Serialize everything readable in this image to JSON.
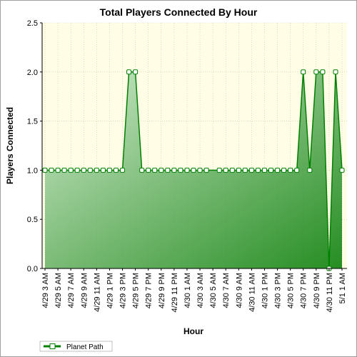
{
  "chart_data": {
    "type": "area",
    "title": "Total Players Connected By Hour",
    "xlabel": "Hour",
    "ylabel": "Players Connected",
    "ylim": [
      0,
      2.5
    ],
    "yticks": [
      "0.0",
      "0.5",
      "1.0",
      "1.5",
      "2.0",
      "2.5"
    ],
    "grid": true,
    "legend": "bottom-left",
    "x_tick_labels": [
      "4/29 3 AM",
      "4/29 5 AM",
      "4/29 7 AM",
      "4/29 9 AM",
      "4/29 11 AM",
      "4/29 1 PM",
      "4/29 3 PM",
      "4/29 5 PM",
      "4/29 7 PM",
      "4/29 9 PM",
      "4/29 11 PM",
      "4/30 1 AM",
      "4/30 3 AM",
      "4/30 5 AM",
      "4/30 7 AM",
      "4/30 9 AM",
      "4/30 11 AM",
      "4/30 1 PM",
      "4/30 3 PM",
      "4/30 5 PM",
      "4/30 7 PM",
      "4/30 9 PM",
      "4/30 11 PM",
      "5/1 1 AM"
    ],
    "series": [
      {
        "name": "Planet Path",
        "points": [
          {
            "x": "4/29 3 AM",
            "y": 1
          },
          {
            "x": "4/29 4 AM",
            "y": 1
          },
          {
            "x": "4/29 5 AM",
            "y": 1
          },
          {
            "x": "4/29 6 AM",
            "y": 1
          },
          {
            "x": "4/29 7 AM",
            "y": 1
          },
          {
            "x": "4/29 8 AM",
            "y": 1
          },
          {
            "x": "4/29 9 AM",
            "y": 1
          },
          {
            "x": "4/29 10 AM",
            "y": 1
          },
          {
            "x": "4/29 11 AM",
            "y": 1
          },
          {
            "x": "4/29 12 PM",
            "y": 1
          },
          {
            "x": "4/29 1 PM",
            "y": 1
          },
          {
            "x": "4/29 2 PM",
            "y": 1
          },
          {
            "x": "4/29 3 PM",
            "y": 1
          },
          {
            "x": "4/29 4 PM",
            "y": 2
          },
          {
            "x": "4/29 5 PM",
            "y": 2
          },
          {
            "x": "4/29 6 PM",
            "y": 1
          },
          {
            "x": "4/29 7 PM",
            "y": 1
          },
          {
            "x": "4/29 8 PM",
            "y": 1
          },
          {
            "x": "4/29 9 PM",
            "y": 1
          },
          {
            "x": "4/29 10 PM",
            "y": 1
          },
          {
            "x": "4/29 11 PM",
            "y": 1
          },
          {
            "x": "4/30 12 AM",
            "y": 1
          },
          {
            "x": "4/30 1 AM",
            "y": 1
          },
          {
            "x": "4/30 2 AM",
            "y": 1
          },
          {
            "x": "4/30 3 AM",
            "y": 1
          },
          {
            "x": "4/30 4 AM",
            "y": 1
          },
          {
            "x": "4/30 6 AM",
            "y": 1
          },
          {
            "x": "4/30 7 AM",
            "y": 1
          },
          {
            "x": "4/30 8 AM",
            "y": 1
          },
          {
            "x": "4/30 9 AM",
            "y": 1
          },
          {
            "x": "4/30 10 AM",
            "y": 1
          },
          {
            "x": "4/30 11 AM",
            "y": 1
          },
          {
            "x": "4/30 12 PM",
            "y": 1
          },
          {
            "x": "4/30 1 PM",
            "y": 1
          },
          {
            "x": "4/30 2 PM",
            "y": 1
          },
          {
            "x": "4/30 3 PM",
            "y": 1
          },
          {
            "x": "4/30 4 PM",
            "y": 1
          },
          {
            "x": "4/30 5 PM",
            "y": 1
          },
          {
            "x": "4/30 6 PM",
            "y": 1
          },
          {
            "x": "4/30 7 PM",
            "y": 2
          },
          {
            "x": "4/30 8 PM",
            "y": 1
          },
          {
            "x": "4/30 9 PM",
            "y": 2
          },
          {
            "x": "4/30 10 PM",
            "y": 2
          },
          {
            "x": "4/30 11 PM",
            "y": 0
          },
          {
            "x": "5/1 12 AM",
            "y": 2
          },
          {
            "x": "5/1 1 AM",
            "y": 1
          }
        ]
      }
    ]
  },
  "colors": {
    "plot_background": "#fffde6",
    "series_line": "#008000",
    "fill_light": "#c8e6c8",
    "fill_dark": "#007a00",
    "marker_fill": "#ffffff"
  }
}
